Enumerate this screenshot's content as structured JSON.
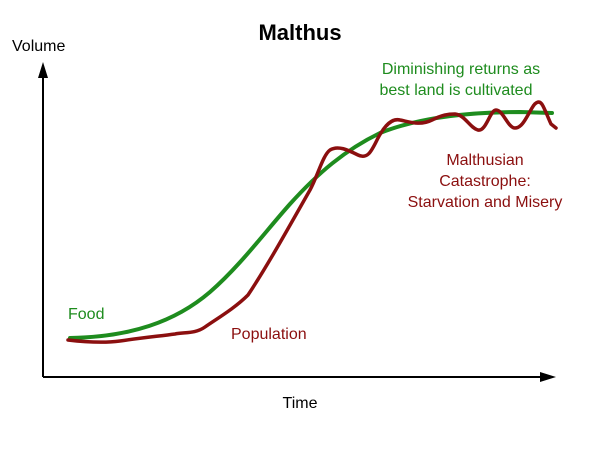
{
  "title": "Malthus",
  "y_axis_label": "Volume",
  "x_axis_label": "Time",
  "labels": {
    "food": "Food",
    "population": "Population",
    "diminishing_returns": [
      "Diminishing returns as",
      "best land is cultivated"
    ],
    "catastrophe": [
      "Malthusian",
      "Catastrophe:",
      "Starvation and Misery"
    ]
  },
  "colors": {
    "food": "#1e8c1e",
    "population": "#8b0f0f",
    "axis": "#000000"
  }
}
